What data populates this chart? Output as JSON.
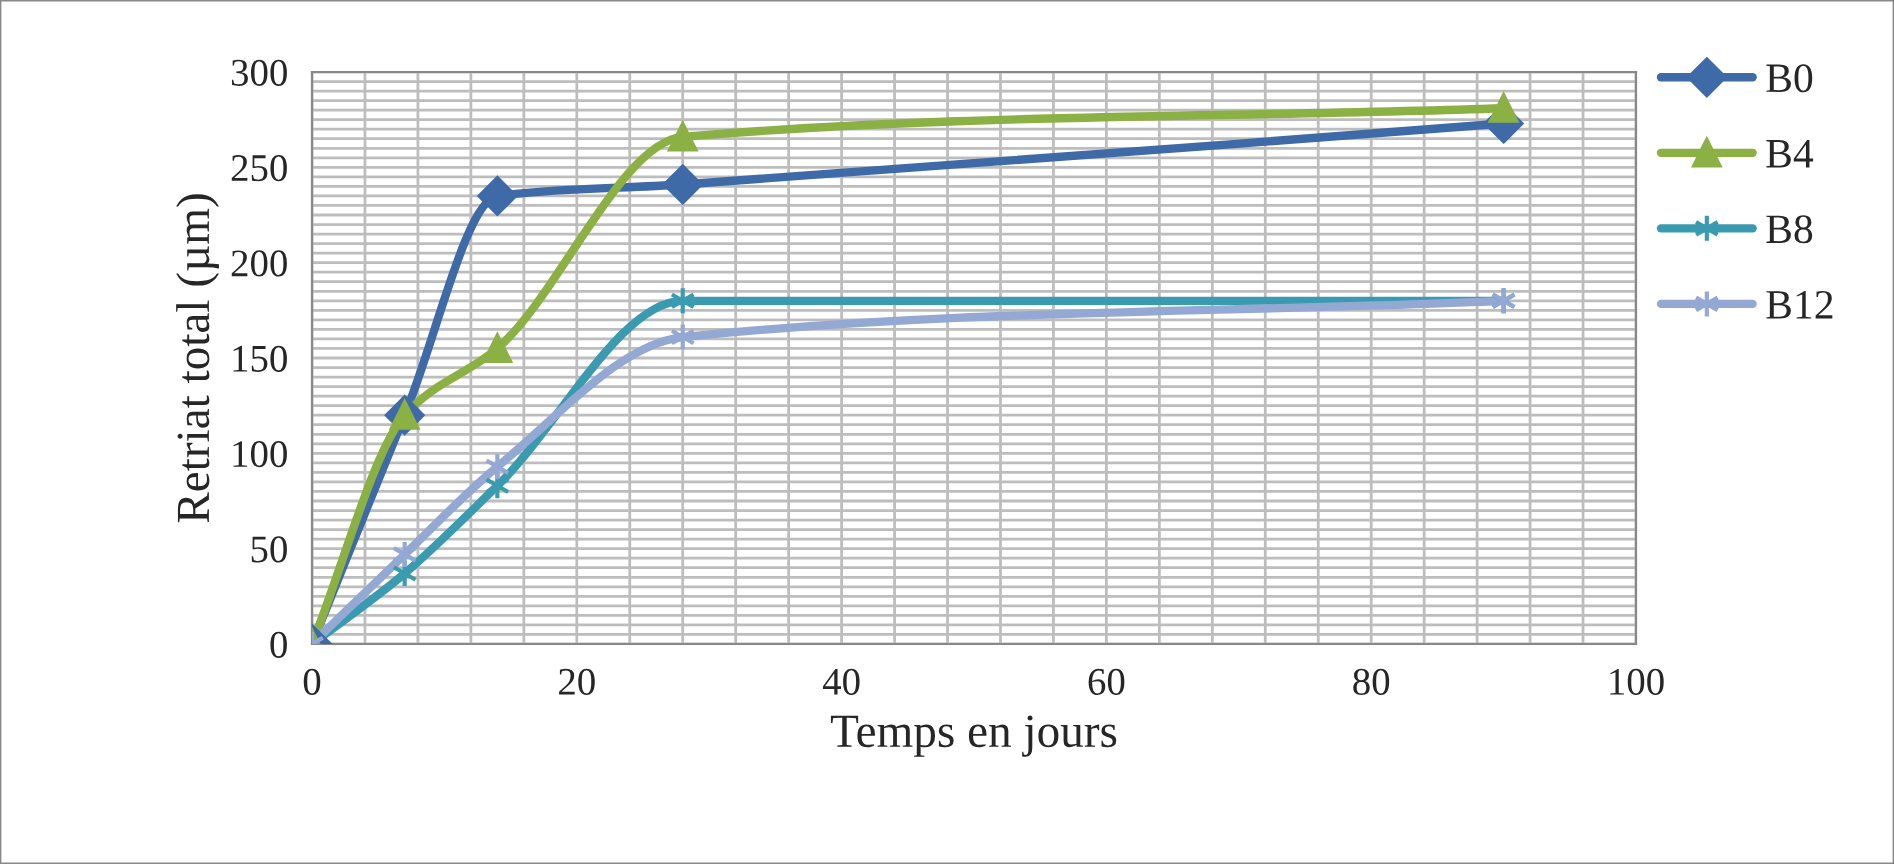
{
  "chart_data": {
    "type": "line",
    "xlabel": "Temps en jours",
    "ylabel": "Retriat total (µm)",
    "x": [
      0,
      7,
      14,
      28,
      90
    ],
    "series": [
      {
        "name": "B0",
        "color": "#3e6aa8",
        "marker": "diamond",
        "values": [
          0,
          120,
          235,
          241,
          273
        ]
      },
      {
        "name": "B4",
        "color": "#8bb044",
        "marker": "triangle",
        "values": [
          0,
          120,
          155,
          266,
          281
        ]
      },
      {
        "name": "B8",
        "color": "#3a9bb0",
        "marker": "cross",
        "values": [
          0,
          37,
          83,
          180,
          180
        ]
      },
      {
        "name": "B12",
        "color": "#93a9d4",
        "marker": "cross",
        "values": [
          0,
          47,
          93,
          161,
          180
        ]
      }
    ],
    "xlim": [
      0,
      100
    ],
    "xticks": [
      0,
      20,
      40,
      60,
      80,
      100
    ],
    "ylim": [
      0,
      300
    ],
    "yticks": [
      0,
      50,
      100,
      150,
      200,
      250,
      300
    ],
    "grid": true,
    "legend": "right"
  }
}
